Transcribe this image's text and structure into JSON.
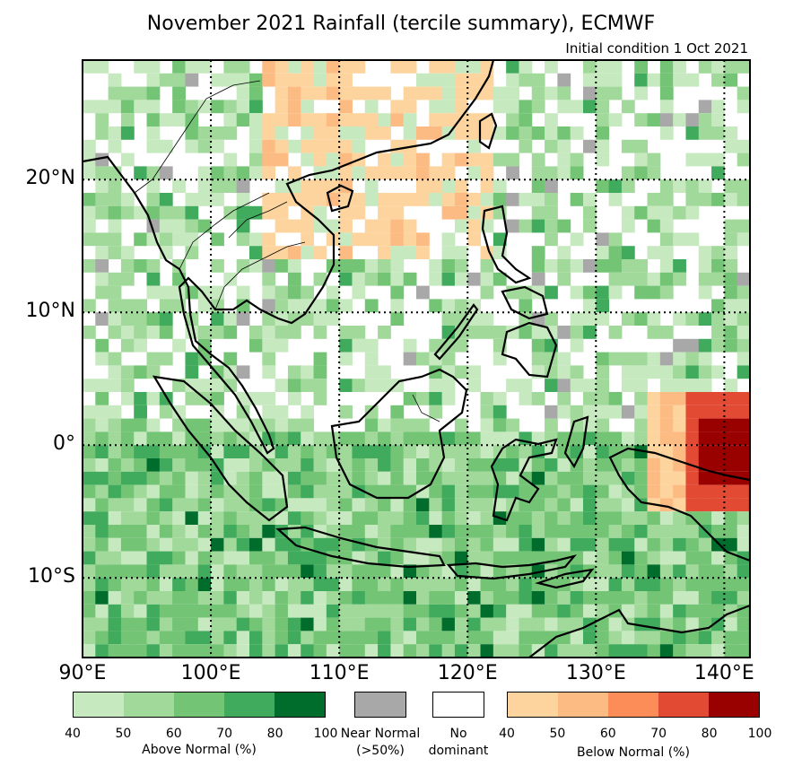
{
  "title": "November 2021 Rainfall (tercile summary), ECMWF",
  "subtitle": "Initial condition 1 Oct 2021",
  "map": {
    "lon_range": [
      90,
      142
    ],
    "lat_range": [
      -16,
      29
    ],
    "lon_ticks": [
      {
        "value": 90,
        "label": "90°E"
      },
      {
        "value": 100,
        "label": "100°E"
      },
      {
        "value": 110,
        "label": "110°E"
      },
      {
        "value": 120,
        "label": "120°E"
      },
      {
        "value": 130,
        "label": "130°E"
      },
      {
        "value": 140,
        "label": "140°E"
      }
    ],
    "lat_ticks": [
      {
        "value": 20,
        "label": "20°N"
      },
      {
        "value": 10,
        "label": "10°N"
      },
      {
        "value": 0,
        "label": "0°"
      },
      {
        "value": -10,
        "label": "10°S"
      }
    ],
    "gridlines": "dotted"
  },
  "legend": {
    "above": {
      "label": "Above Normal (%)",
      "ticks": [
        "40",
        "50",
        "60",
        "70",
        "80",
        "100"
      ],
      "colors": [
        "#c7e9c0",
        "#a1d99b",
        "#74c476",
        "#41ab5d",
        "#006d2c"
      ]
    },
    "near": {
      "label_line1": "Near Normal",
      "label_line2": "(>50%)",
      "color": "#a8a8a8"
    },
    "none": {
      "label_line1": "No",
      "label_line2": "dominant",
      "color": "#ffffff"
    },
    "below": {
      "label": "Below Normal (%)",
      "ticks": [
        "40",
        "50",
        "60",
        "70",
        "80",
        "100"
      ],
      "colors": [
        "#fdd49e",
        "#fdbb84",
        "#fc8d59",
        "#e34a33",
        "#990000"
      ]
    }
  }
}
